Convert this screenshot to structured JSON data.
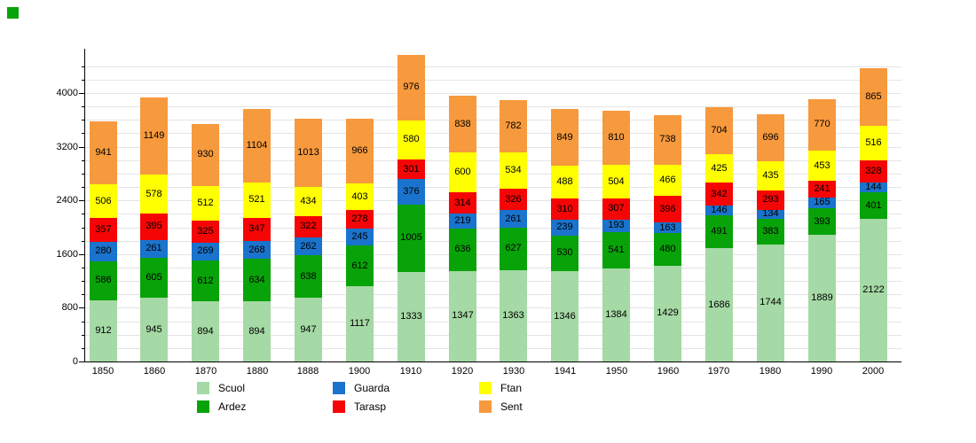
{
  "chart_data": {
    "type": "bar",
    "stacked": true,
    "title": "",
    "xlabel": "",
    "ylabel": "",
    "categories": [
      "1850",
      "1860",
      "1870",
      "1880",
      "1888",
      "1900",
      "1910",
      "1920",
      "1930",
      "1941",
      "1950",
      "1960",
      "1970",
      "1980",
      "1990",
      "2000"
    ],
    "series": [
      {
        "name": "Scuol",
        "color": "#a5d9a5",
        "values": [
          912,
          945,
          894,
          894,
          947,
          1117,
          1333,
          1347,
          1363,
          1346,
          1384,
          1429,
          1686,
          1744,
          1889,
          2122
        ]
      },
      {
        "name": "Ardez",
        "color": "#08a308",
        "values": [
          586,
          605,
          612,
          634,
          638,
          612,
          1005,
          636,
          627,
          530,
          541,
          480,
          491,
          383,
          393,
          401
        ]
      },
      {
        "name": "Guarda",
        "color": "#1a73cc",
        "values": [
          280,
          261,
          269,
          268,
          262,
          245,
          376,
          219,
          261,
          239,
          193,
          163,
          146,
          134,
          165,
          144
        ]
      },
      {
        "name": "Tarasp",
        "color": "#f50505",
        "values": [
          357,
          395,
          325,
          347,
          322,
          278,
          301,
          314,
          326,
          310,
          307,
          396,
          342,
          293,
          241,
          328
        ]
      },
      {
        "name": "Ftan",
        "color": "#ffff00",
        "values": [
          506,
          578,
          512,
          521,
          434,
          403,
          580,
          600,
          534,
          488,
          504,
          466,
          425,
          435,
          453,
          516
        ]
      },
      {
        "name": "Sent",
        "color": "#f7993d",
        "values": [
          941,
          1149,
          930,
          1104,
          1013,
          966,
          976,
          838,
          782,
          849,
          810,
          738,
          704,
          696,
          770,
          865
        ]
      }
    ],
    "y_ticks": [
      0,
      800,
      1600,
      2400,
      3200,
      4000
    ],
    "ylim": [
      0,
      4600
    ],
    "grid": true,
    "grid_interval": 200,
    "legend_position": "bottom",
    "legend_columns": [
      [
        "Scuol",
        "Ardez"
      ],
      [
        "Guarda",
        "Tarasp"
      ],
      [
        "Ftan",
        "Sent"
      ]
    ]
  },
  "colors": {
    "background": "#ffffff",
    "axis": "#000000",
    "gridline": "#e4e4e4",
    "text": "#000000",
    "corner_marker": "#08a308"
  }
}
